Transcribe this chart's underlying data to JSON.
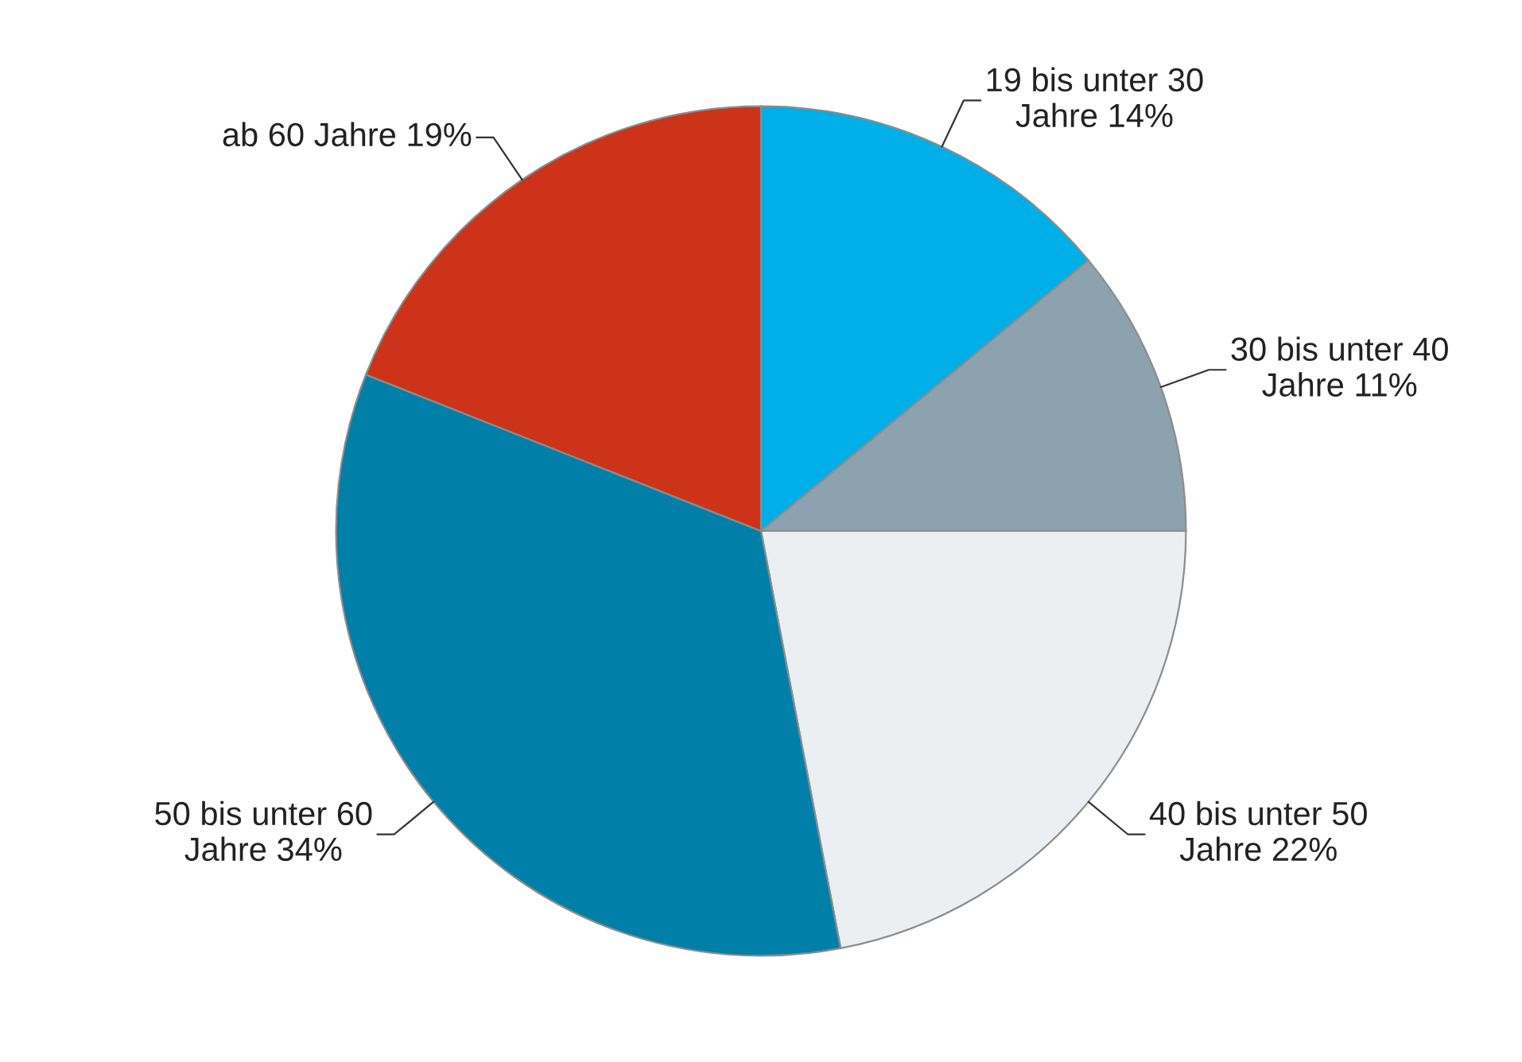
{
  "chart_data": {
    "type": "pie",
    "categories": [
      "19 bis unter 30\nJahre",
      "30 bis unter 40\nJahre",
      "40 bis unter 50\nJahre",
      "50 bis unter 60\nJahre",
      "ab 60 Jahre"
    ],
    "values": [
      14,
      11,
      22,
      34,
      19
    ],
    "value_labels": [
      "14%",
      "11%",
      "22%",
      "34%",
      "19%"
    ],
    "colors": [
      "#00aee8",
      "#8ca2ae",
      "#eceff2",
      "#007fa8",
      "#cc3318"
    ],
    "legend": false
  }
}
